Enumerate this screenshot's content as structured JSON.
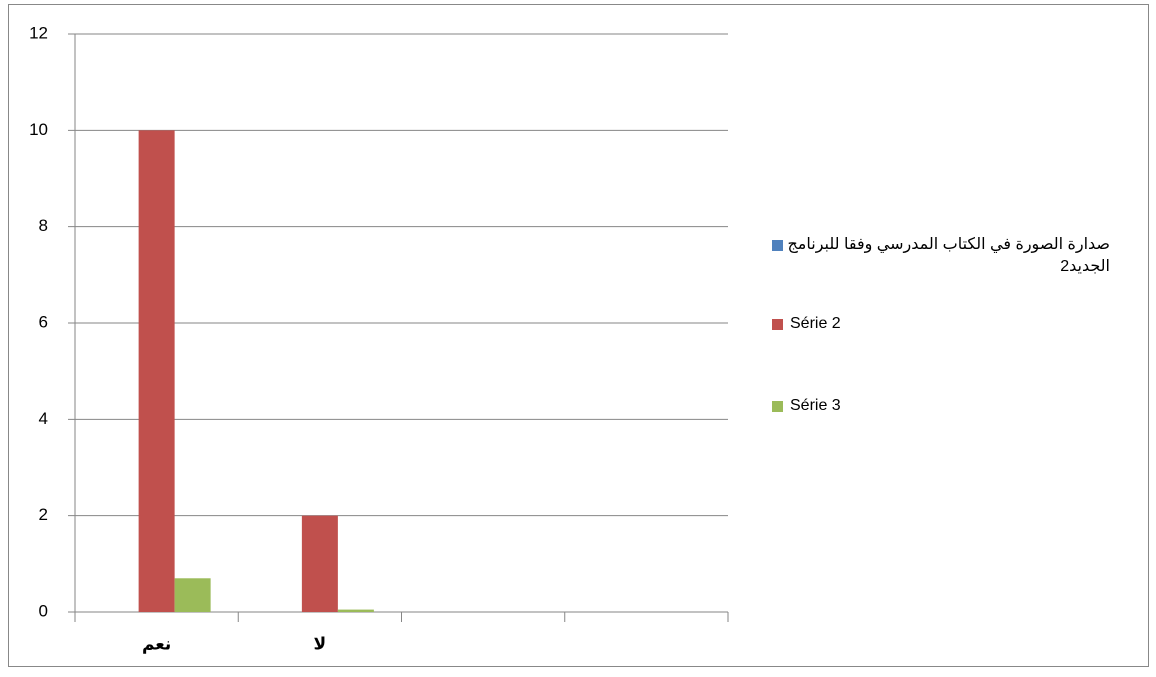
{
  "chart_data": {
    "type": "bar",
    "categories": [
      "نعم",
      "لا",
      null,
      null
    ],
    "series": [
      {
        "name": "صدارة الصورة في الكتاب المدرسي وفقا للبرنامج الجديد2",
        "color": "#4f81bd",
        "values": [
          0,
          0,
          null,
          null
        ]
      },
      {
        "name": "Série 2",
        "color": "#c0504d",
        "values": [
          10,
          2,
          null,
          null
        ]
      },
      {
        "name": "Série 3",
        "color": "#9bbb59",
        "values": [
          0.7,
          0.05,
          null,
          null
        ]
      }
    ],
    "ylim": [
      0,
      12
    ],
    "yticks": [
      0,
      2,
      4,
      6,
      8,
      10,
      12
    ],
    "grid": true,
    "legend": "right"
  }
}
